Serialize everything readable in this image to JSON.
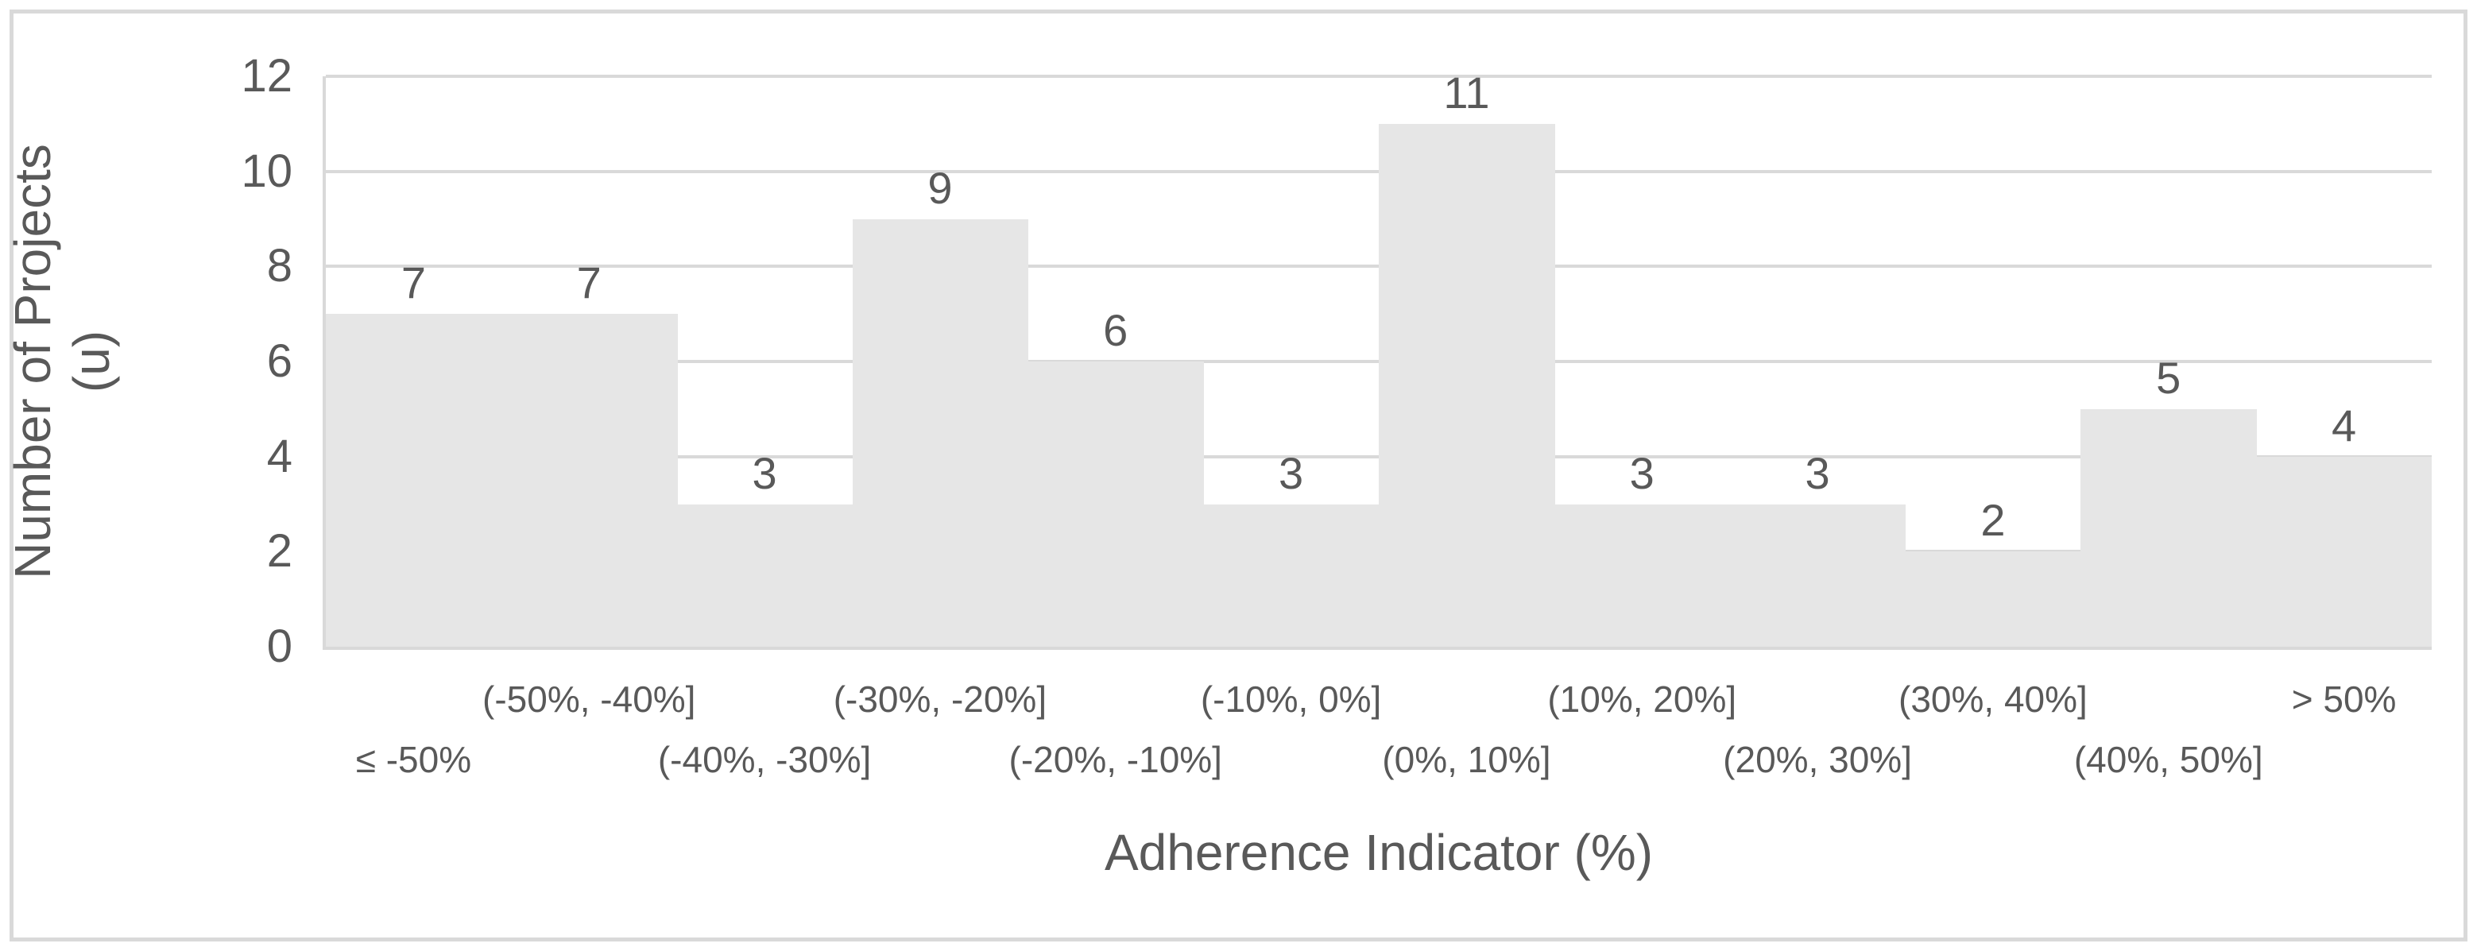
{
  "chart_data": {
    "type": "bar",
    "subtype": "histogram",
    "title": "",
    "categories": [
      "≤ -50%",
      "(-50%, -40%]",
      "(-40%, -30%]",
      "(-30%, -20%]",
      "(-20%, -10%]",
      "(-10%, 0%]",
      "(0%, 10%]",
      "(10%, 20%]",
      "(20%, 30%]",
      "(30%, 40%]",
      "(40%, 50%]",
      "> 50%"
    ],
    "values": [
      7,
      7,
      3,
      9,
      6,
      3,
      11,
      3,
      3,
      2,
      5,
      4
    ],
    "data_labels": [
      7,
      7,
      3,
      9,
      6,
      3,
      11,
      3,
      3,
      2,
      5,
      4
    ],
    "xlabel": "Adherence Indicator (%)",
    "ylabel": "Number of Projects (u)",
    "ylabel_lines": [
      "Number of Projects",
      "(u)"
    ],
    "ylim": [
      0,
      12
    ],
    "yticks": [
      0,
      2,
      4,
      6,
      8,
      10,
      12
    ],
    "grid": true,
    "legend_position": "none",
    "bar_gap_percent": 0,
    "x_labels_staggered": true,
    "colors": {
      "bar_fill": "#e6e6e6",
      "gridline": "#d9d9d9",
      "axis_line": "#d9d9d9",
      "frame_border": "#d9d9d9",
      "text": "#595959",
      "background": "#ffffff"
    }
  }
}
